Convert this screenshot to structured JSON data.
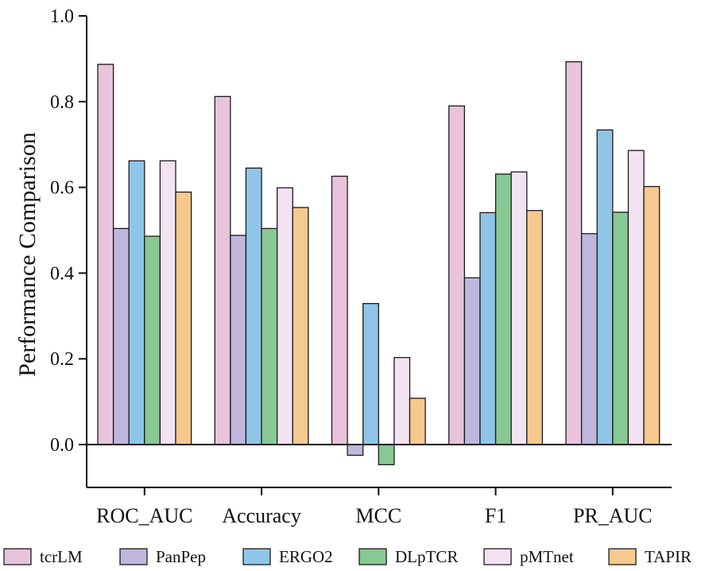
{
  "chart_data": {
    "type": "bar",
    "title": "",
    "xlabel": "",
    "ylabel": "Performance Comparison",
    "ylim": [
      -0.1,
      1.0
    ],
    "yticks": [
      0.0,
      0.2,
      0.4,
      0.6,
      0.8,
      1.0
    ],
    "ytick_labels": [
      "0.0",
      "0.2",
      "0.4",
      "0.6",
      "0.8",
      "1.0"
    ],
    "grid": false,
    "legend_position": "bottom",
    "categories": [
      "ROC_AUC",
      "Accuracy",
      "MCC",
      "F1",
      "PR_AUC"
    ],
    "series": [
      {
        "name": "tcrLM",
        "color": "#e8c3dc",
        "values": [
          0.887,
          0.812,
          0.626,
          0.79,
          0.893
        ]
      },
      {
        "name": "PanPep",
        "color": "#bfb7dc",
        "values": [
          0.504,
          0.488,
          -0.025,
          0.389,
          0.492
        ]
      },
      {
        "name": "ERGO2",
        "color": "#8fc6e8",
        "values": [
          0.662,
          0.645,
          0.329,
          0.541,
          0.734
        ]
      },
      {
        "name": "DLpTCR",
        "color": "#88c893",
        "values": [
          0.486,
          0.504,
          -0.047,
          0.631,
          0.542
        ]
      },
      {
        "name": "pMTnet",
        "color": "#f3e3f2",
        "values": [
          0.662,
          0.599,
          0.203,
          0.636,
          0.686
        ]
      },
      {
        "name": "TAPIR",
        "color": "#f6c98f",
        "values": [
          0.589,
          0.553,
          0.108,
          0.546,
          0.602
        ]
      }
    ]
  }
}
